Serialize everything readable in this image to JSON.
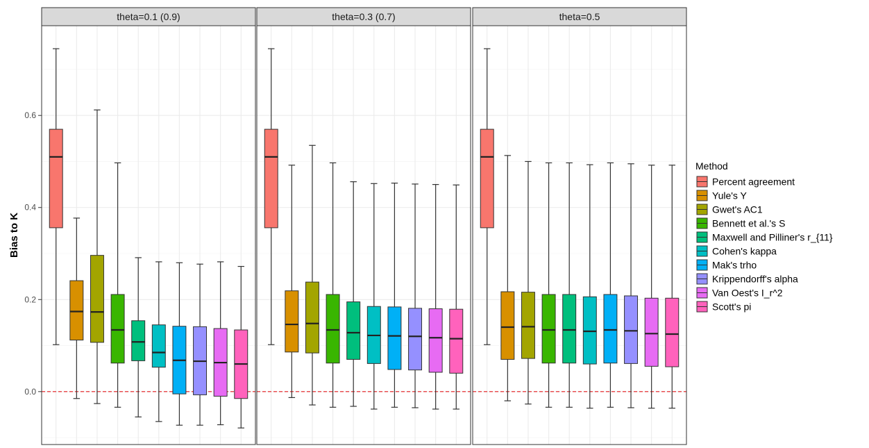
{
  "chart_data": {
    "type": "boxplot",
    "ylabel": "Bias to K",
    "xlabel": "",
    "ylim": [
      -0.115,
      0.795
    ],
    "yticks": [
      0.0,
      0.2,
      0.4,
      0.6
    ],
    "ytick_labels": [
      "0.0",
      "0.2",
      "0.4",
      "0.6"
    ],
    "reference_line": {
      "y": 0.0,
      "color": "#e41a1c",
      "style": "dashed"
    },
    "grid": true,
    "legend": {
      "title": "Method",
      "position": "right",
      "entries": [
        {
          "name": "Percent agreement",
          "color": "#F8766D"
        },
        {
          "name": "Yule's Y",
          "color": "#D89000"
        },
        {
          "name": "Gwet's AC1",
          "color": "#A3A500"
        },
        {
          "name": "Bennett et al.'s S",
          "color": "#39B600"
        },
        {
          "name": "Maxwell and Pilliner's r_{11}",
          "color": "#00BF7D"
        },
        {
          "name": "Cohen's kappa",
          "color": "#00BFC4"
        },
        {
          "name": "Mak's trho",
          "color": "#00B0F6"
        },
        {
          "name": "Krippendorff's alpha",
          "color": "#9590FF"
        },
        {
          "name": "Van Oest's I_r^2",
          "color": "#E76BF3"
        },
        {
          "name": "Scott's pi",
          "color": "#FF62BC"
        }
      ]
    },
    "panels": [
      {
        "title": "theta=0.1 (0.9)",
        "boxes": [
          {
            "method": "Percent agreement",
            "whisker_low": 0.102,
            "q1": 0.356,
            "median": 0.51,
            "q3": 0.57,
            "whisker_high": 0.745
          },
          {
            "method": "Yule's Y",
            "whisker_low": -0.015,
            "q1": 0.112,
            "median": 0.174,
            "q3": 0.241,
            "whisker_high": 0.377
          },
          {
            "method": "Gwet's AC1",
            "whisker_low": -0.026,
            "q1": 0.107,
            "median": 0.173,
            "q3": 0.296,
            "whisker_high": 0.612
          },
          {
            "method": "Bennett et al.'s S",
            "whisker_low": -0.034,
            "q1": 0.062,
            "median": 0.134,
            "q3": 0.211,
            "whisker_high": 0.497
          },
          {
            "method": "Maxwell and Pilliner's r_{11}",
            "whisker_low": -0.055,
            "q1": 0.067,
            "median": 0.108,
            "q3": 0.154,
            "whisker_high": 0.291
          },
          {
            "method": "Cohen's kappa",
            "whisker_low": -0.065,
            "q1": 0.053,
            "median": 0.085,
            "q3": 0.145,
            "whisker_high": 0.282
          },
          {
            "method": "Mak's trho",
            "whisker_low": -0.073,
            "q1": -0.005,
            "median": 0.068,
            "q3": 0.142,
            "whisker_high": 0.28
          },
          {
            "method": "Krippendorff's alpha",
            "whisker_low": -0.073,
            "q1": -0.007,
            "median": 0.066,
            "q3": 0.141,
            "whisker_high": 0.277
          },
          {
            "method": "Van Oest's I_r^2",
            "whisker_low": -0.072,
            "q1": -0.01,
            "median": 0.063,
            "q3": 0.137,
            "whisker_high": 0.282
          },
          {
            "method": "Scott's pi",
            "whisker_low": -0.079,
            "q1": -0.015,
            "median": 0.06,
            "q3": 0.134,
            "whisker_high": 0.272
          }
        ]
      },
      {
        "title": "theta=0.3 (0.7)",
        "boxes": [
          {
            "method": "Percent agreement",
            "whisker_low": 0.102,
            "q1": 0.356,
            "median": 0.51,
            "q3": 0.57,
            "whisker_high": 0.745
          },
          {
            "method": "Yule's Y",
            "whisker_low": -0.013,
            "q1": 0.086,
            "median": 0.146,
            "q3": 0.219,
            "whisker_high": 0.492
          },
          {
            "method": "Gwet's AC1",
            "whisker_low": -0.029,
            "q1": 0.084,
            "median": 0.148,
            "q3": 0.238,
            "whisker_high": 0.535
          },
          {
            "method": "Bennett et al.'s S",
            "whisker_low": -0.034,
            "q1": 0.062,
            "median": 0.134,
            "q3": 0.211,
            "whisker_high": 0.497
          },
          {
            "method": "Maxwell and Pilliner's r_{11}",
            "whisker_low": -0.032,
            "q1": 0.07,
            "median": 0.128,
            "q3": 0.195,
            "whisker_high": 0.456
          },
          {
            "method": "Cohen's kappa",
            "whisker_low": -0.038,
            "q1": 0.061,
            "median": 0.122,
            "q3": 0.185,
            "whisker_high": 0.452
          },
          {
            "method": "Mak's trho",
            "whisker_low": -0.034,
            "q1": 0.048,
            "median": 0.121,
            "q3": 0.184,
            "whisker_high": 0.453
          },
          {
            "method": "Krippendorff's alpha",
            "whisker_low": -0.035,
            "q1": 0.047,
            "median": 0.12,
            "q3": 0.181,
            "whisker_high": 0.451
          },
          {
            "method": "Van Oest's I_r^2",
            "whisker_low": -0.038,
            "q1": 0.042,
            "median": 0.117,
            "q3": 0.18,
            "whisker_high": 0.45
          },
          {
            "method": "Scott's pi",
            "whisker_low": -0.038,
            "q1": 0.04,
            "median": 0.115,
            "q3": 0.179,
            "whisker_high": 0.449
          }
        ]
      },
      {
        "title": "theta=0.5",
        "boxes": [
          {
            "method": "Percent agreement",
            "whisker_low": 0.102,
            "q1": 0.356,
            "median": 0.51,
            "q3": 0.57,
            "whisker_high": 0.745
          },
          {
            "method": "Yule's Y",
            "whisker_low": -0.02,
            "q1": 0.07,
            "median": 0.14,
            "q3": 0.217,
            "whisker_high": 0.513
          },
          {
            "method": "Gwet's AC1",
            "whisker_low": -0.027,
            "q1": 0.072,
            "median": 0.141,
            "q3": 0.216,
            "whisker_high": 0.5
          },
          {
            "method": "Bennett et al.'s S",
            "whisker_low": -0.034,
            "q1": 0.062,
            "median": 0.134,
            "q3": 0.211,
            "whisker_high": 0.497
          },
          {
            "method": "Maxwell and Pilliner's r_{11}",
            "whisker_low": -0.034,
            "q1": 0.062,
            "median": 0.134,
            "q3": 0.211,
            "whisker_high": 0.497
          },
          {
            "method": "Cohen's kappa",
            "whisker_low": -0.036,
            "q1": 0.06,
            "median": 0.131,
            "q3": 0.206,
            "whisker_high": 0.493
          },
          {
            "method": "Mak's trho",
            "whisker_low": -0.034,
            "q1": 0.062,
            "median": 0.134,
            "q3": 0.211,
            "whisker_high": 0.497
          },
          {
            "method": "Krippendorff's alpha",
            "whisker_low": -0.035,
            "q1": 0.061,
            "median": 0.132,
            "q3": 0.208,
            "whisker_high": 0.495
          },
          {
            "method": "Van Oest's I_r^2",
            "whisker_low": -0.036,
            "q1": 0.055,
            "median": 0.126,
            "q3": 0.203,
            "whisker_high": 0.492
          },
          {
            "method": "Scott's pi",
            "whisker_low": -0.036,
            "q1": 0.054,
            "median": 0.125,
            "q3": 0.203,
            "whisker_high": 0.492
          }
        ]
      }
    ]
  }
}
